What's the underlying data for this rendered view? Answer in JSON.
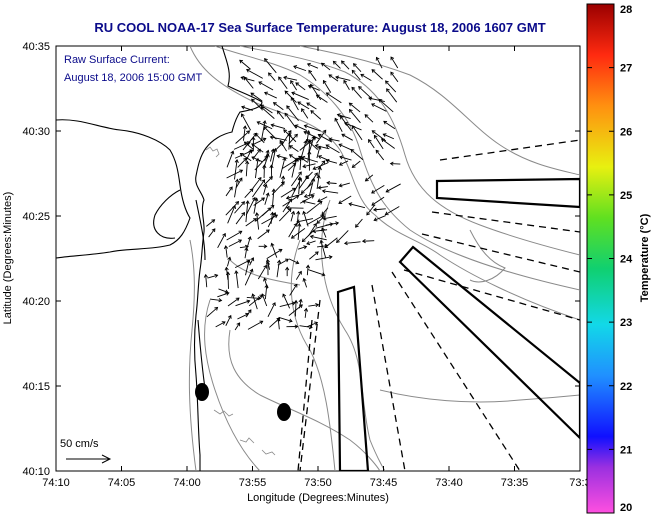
{
  "title": "RU COOL  NOAA-17  Sea Surface Temperature:  August 18, 2006 1607 GMT",
  "annotation": {
    "line1": "Raw Surface Current:",
    "line2": "August 18, 2006 15:00 GMT"
  },
  "scale_label": "50 cm/s",
  "colorbar": {
    "label": "Temperature (°C)",
    "min": 20,
    "max": 28,
    "ticks": [
      "20",
      "21",
      "22",
      "23",
      "24",
      "25",
      "26",
      "27",
      "28"
    ]
  },
  "chart_data": {
    "type": "map",
    "xlabel": "Longitude (Degrees:Minutes)",
    "ylabel": "Latitude (Degrees:Minutes)",
    "x_ticks": [
      "74:10",
      "74:05",
      "74:00",
      "73:55",
      "73:50",
      "73:45",
      "73:40",
      "73:35",
      "73:3"
    ],
    "y_ticks": [
      "40:10",
      "40:15",
      "40:20",
      "40:25",
      "40:30",
      "40:35"
    ]
  },
  "colors": {
    "title": "#0b0b8a",
    "contour": "#8a8a8a",
    "coast": "#000000"
  }
}
